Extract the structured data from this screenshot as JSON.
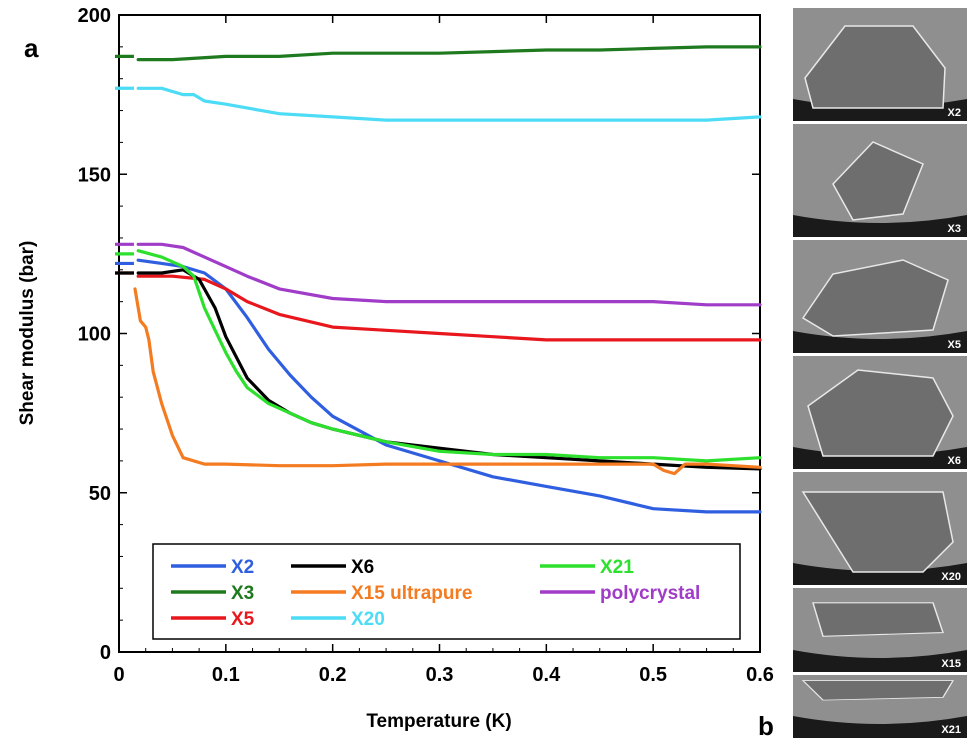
{
  "panel_a_label": "a",
  "panel_b_label": "b",
  "chart_data": {
    "type": "line",
    "xlabel": "Temperature (K)",
    "ylabel": "Shear modulus  (bar)",
    "xlim": [
      0,
      0.6
    ],
    "ylim": [
      0,
      200
    ],
    "xticks": [
      0,
      0.1,
      0.2,
      0.3,
      0.4,
      0.5,
      0.6
    ],
    "xtick_labels": [
      "0",
      "0.1",
      "0.2",
      "0.3",
      "0.4",
      "0.5",
      "0.6"
    ],
    "yticks": [
      0,
      50,
      100,
      150,
      200
    ],
    "ytick_labels": [
      "0",
      "50",
      "100",
      "150",
      "200"
    ],
    "grid": false,
    "legend_position": "bottom",
    "series": [
      {
        "name": "X2",
        "color": "#2f5fe0",
        "low_t_value": 122,
        "x": [
          0.018,
          0.04,
          0.06,
          0.08,
          0.1,
          0.12,
          0.14,
          0.16,
          0.18,
          0.2,
          0.25,
          0.3,
          0.35,
          0.4,
          0.45,
          0.5,
          0.55,
          0.6
        ],
        "y": [
          123,
          122,
          121,
          119,
          114,
          105,
          95,
          87,
          80,
          74,
          65,
          60,
          55,
          52,
          49,
          45,
          44,
          44
        ]
      },
      {
        "name": "X3",
        "color": "#1f7a1f",
        "low_t_value": 187,
        "x": [
          0.018,
          0.05,
          0.1,
          0.15,
          0.2,
          0.25,
          0.3,
          0.35,
          0.4,
          0.45,
          0.5,
          0.55,
          0.6
        ],
        "y": [
          186,
          186,
          187,
          187,
          188,
          188,
          188,
          188.5,
          189,
          189,
          189.5,
          190,
          190
        ]
      },
      {
        "name": "X5",
        "color": "#e8171e",
        "low_t_value": 119,
        "x": [
          0.018,
          0.05,
          0.08,
          0.1,
          0.12,
          0.15,
          0.2,
          0.25,
          0.3,
          0.35,
          0.4,
          0.45,
          0.5,
          0.55,
          0.6
        ],
        "y": [
          118,
          118,
          117,
          114,
          110,
          106,
          102,
          101,
          100,
          99,
          98,
          98,
          98,
          98,
          98
        ]
      },
      {
        "name": "X6",
        "color": "#000000",
        "low_t_value": 119,
        "x": [
          0.018,
          0.04,
          0.06,
          0.075,
          0.09,
          0.1,
          0.12,
          0.14,
          0.16,
          0.18,
          0.2,
          0.25,
          0.3,
          0.35,
          0.4,
          0.45,
          0.5,
          0.55,
          0.6
        ],
        "y": [
          119,
          119,
          120,
          117,
          108,
          99,
          86,
          79,
          75,
          72,
          70,
          66,
          64,
          62,
          61,
          60,
          59,
          58,
          57.5
        ]
      },
      {
        "name": "X15 ultrapure",
        "color": "#f47b20",
        "low_t_value": null,
        "x": [
          0.015,
          0.02,
          0.025,
          0.028,
          0.032,
          0.04,
          0.05,
          0.06,
          0.08,
          0.1,
          0.15,
          0.2,
          0.25,
          0.3,
          0.35,
          0.4,
          0.45,
          0.5,
          0.51,
          0.52,
          0.53,
          0.55,
          0.6
        ],
        "y": [
          114,
          104,
          102,
          98,
          88,
          78,
          68,
          61,
          59,
          59,
          58.5,
          58.5,
          59,
          59,
          59,
          59,
          59,
          59,
          57,
          56,
          59,
          59,
          58
        ]
      },
      {
        "name": "X20",
        "color": "#4ddcf5",
        "low_t_value": 177,
        "x": [
          0.018,
          0.03,
          0.04,
          0.06,
          0.07,
          0.08,
          0.1,
          0.15,
          0.2,
          0.25,
          0.3,
          0.35,
          0.4,
          0.45,
          0.5,
          0.55,
          0.6
        ],
        "y": [
          177,
          177,
          177,
          175,
          175,
          173,
          172,
          169,
          168,
          167,
          167,
          167,
          167,
          167,
          167,
          167,
          168
        ]
      },
      {
        "name": "X21",
        "color": "#2de02d",
        "low_t_value": 125,
        "x": [
          0.018,
          0.04,
          0.06,
          0.07,
          0.08,
          0.09,
          0.1,
          0.11,
          0.12,
          0.14,
          0.16,
          0.18,
          0.2,
          0.25,
          0.3,
          0.35,
          0.4,
          0.45,
          0.5,
          0.55,
          0.6
        ],
        "y": [
          126,
          124,
          121,
          118,
          108,
          101,
          94,
          88,
          83,
          78,
          75,
          72,
          70,
          66,
          63,
          62,
          62,
          61,
          61,
          60,
          61
        ]
      },
      {
        "name": "polycrystal",
        "color": "#a03cc8",
        "low_t_value": 128,
        "x": [
          0.018,
          0.04,
          0.06,
          0.08,
          0.1,
          0.12,
          0.15,
          0.2,
          0.25,
          0.3,
          0.35,
          0.4,
          0.45,
          0.5,
          0.55,
          0.6
        ],
        "y": [
          128,
          128,
          127,
          124,
          121,
          118,
          114,
          111,
          110,
          110,
          110,
          110,
          110,
          110,
          109,
          109
        ]
      }
    ],
    "legend_order": [
      "X2",
      "X6",
      "X21",
      "X3",
      "X15 ultrapure",
      "polycrystal",
      "X5",
      "X20"
    ]
  },
  "photos": [
    {
      "label": "X2"
    },
    {
      "label": "X3"
    },
    {
      "label": "X5"
    },
    {
      "label": "X6"
    },
    {
      "label": "X20"
    },
    {
      "label": "X15"
    },
    {
      "label": "X21"
    }
  ]
}
